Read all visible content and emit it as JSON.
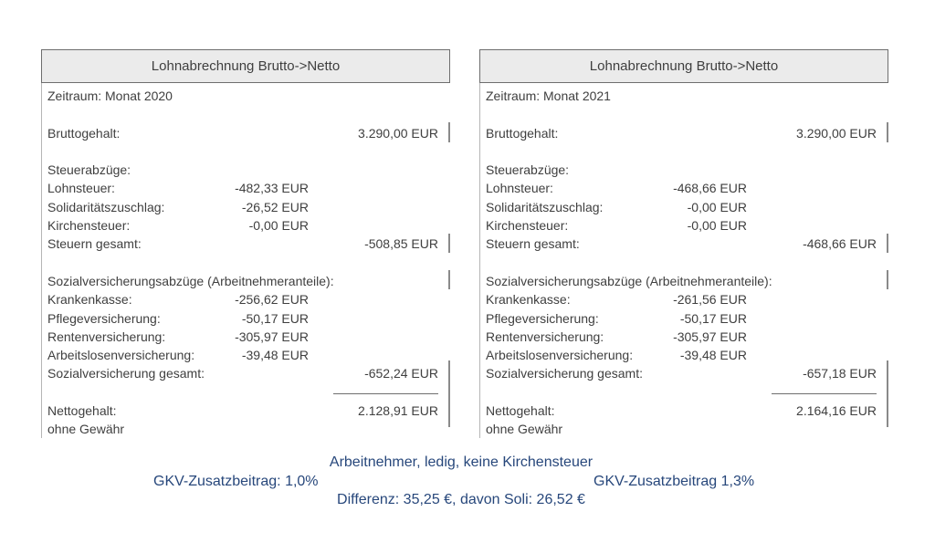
{
  "panels": [
    {
      "title": "Lohnabrechnung Brutto->Netto",
      "rows": [
        {
          "label": "Zeitraum: Monat 2020"
        },
        {},
        {
          "label": "Bruttogehalt:",
          "total": "3.290,00 EUR"
        },
        {},
        {
          "label": "Steuerabzüge:"
        },
        {
          "label": "Lohnsteuer:",
          "mid": "-482,33 EUR"
        },
        {
          "label": "Solidaritätszuschlag:",
          "mid": "-26,52 EUR"
        },
        {
          "label": "Kirchensteuer:",
          "mid": "-0,00 EUR"
        },
        {
          "label": "Steuern gesamt:",
          "total": "-508,85 EUR"
        },
        {},
        {
          "label": "Sozialversicherungsabzüge (Arbeitnehmeranteile):"
        },
        {
          "label": "Krankenkasse:",
          "mid": "-256,62 EUR"
        },
        {
          "label": "Pflegeversicherung:",
          "mid": "-50,17 EUR"
        },
        {
          "label": "Rentenversicherung:",
          "mid": "-305,97 EUR"
        },
        {
          "label": "Arbeitslosenversicherung:",
          "mid": "-39,48 EUR"
        },
        {
          "label": "Sozialversicherung gesamt:",
          "total": "-652,24 EUR"
        },
        {},
        {
          "label": "Nettogehalt:",
          "total": "2.128,91 EUR"
        },
        {
          "label": "ohne Gewähr"
        }
      ]
    },
    {
      "title": "Lohnabrechnung Brutto->Netto",
      "rows": [
        {
          "label": "Zeitraum: Monat 2021"
        },
        {},
        {
          "label": "Bruttogehalt:",
          "total": "3.290,00 EUR"
        },
        {},
        {
          "label": "Steuerabzüge:"
        },
        {
          "label": "Lohnsteuer:",
          "mid": "-468,66 EUR"
        },
        {
          "label": "Solidaritätszuschlag:",
          "mid": "-0,00 EUR"
        },
        {
          "label": "Kirchensteuer:",
          "mid": "-0,00 EUR"
        },
        {
          "label": "Steuern gesamt:",
          "total": "-468,66 EUR"
        },
        {},
        {
          "label": "Sozialversicherungsabzüge (Arbeitnehmeranteile):"
        },
        {
          "label": "Krankenkasse:",
          "mid": "-261,56 EUR"
        },
        {
          "label": "Pflegeversicherung:",
          "mid": "-50,17 EUR"
        },
        {
          "label": "Rentenversicherung:",
          "mid": "-305,97 EUR"
        },
        {
          "label": "Arbeitslosenversicherung:",
          "mid": "-39,48 EUR"
        },
        {
          "label": "Sozialversicherung gesamt:",
          "total": "-657,18 EUR"
        },
        {},
        {
          "label": "Nettogehalt:",
          "total": "2.164,16 EUR"
        },
        {
          "label": "ohne Gewähr"
        }
      ]
    }
  ],
  "footer": {
    "employee_note": "Arbeitnehmer, ledig, keine Kirchensteuer",
    "gkv_2020": "GKV-Zusatzbeitrag: 1,0%",
    "gkv_2021": "GKV-Zusatzbeitrag 1,3%",
    "difference": "Differenz: 35,25 €, davon Soli: 26,52 €"
  },
  "colors": {
    "footer_text": "#27477b",
    "panel_text": "#3f3f3f",
    "header_fill": "#ebebeb"
  }
}
